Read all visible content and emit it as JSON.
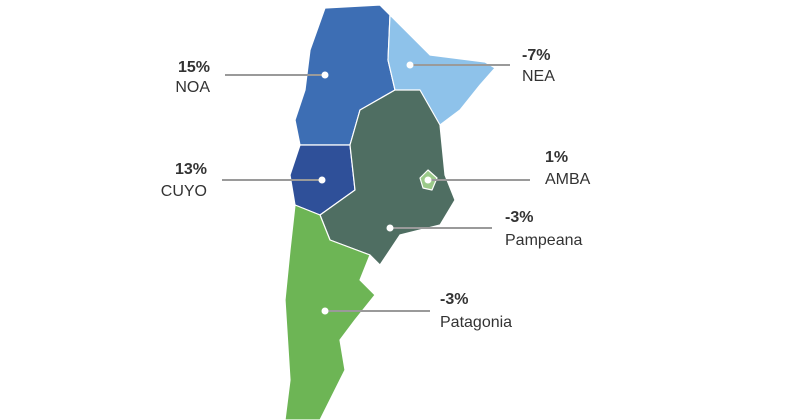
{
  "regions": [
    {
      "value": "15%",
      "name": "NOA"
    },
    {
      "value": "-7%",
      "name": "NEA"
    },
    {
      "value": "13%",
      "name": "CUYO"
    },
    {
      "value": "1%",
      "name": "AMBA"
    },
    {
      "value": "-3%",
      "name": "Pampeana"
    },
    {
      "value": "-3%",
      "name": "Patagonia"
    }
  ]
}
